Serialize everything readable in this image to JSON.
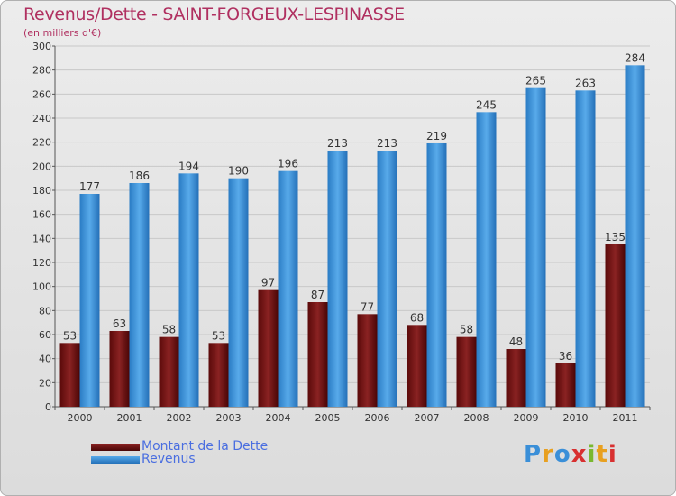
{
  "title": "Revenus/Dette - SAINT-FORGEUX-LESPINASSE",
  "subtitle": "(en milliers d'€)",
  "logo": "Proxiti",
  "colors": {
    "dette_fill": "#7a1a1a",
    "revenus_fill": "#3c96dc",
    "title": "#b03060",
    "legend_text": "#4a6ee0",
    "grid": "#c8c8c8"
  },
  "legend": [
    {
      "label": "Montant de la Dette",
      "color": "#7a1a1a"
    },
    {
      "label": "Revenus",
      "color": "#3c96dc"
    }
  ],
  "chart_data": {
    "type": "bar",
    "title": "Revenus/Dette - SAINT-FORGEUX-LESPINASSE",
    "ylabel": "(en milliers d'€)",
    "categories": [
      "2000",
      "2001",
      "2002",
      "2003",
      "2004",
      "2005",
      "2006",
      "2007",
      "2008",
      "2009",
      "2010",
      "2011"
    ],
    "series": [
      {
        "name": "Montant de la Dette",
        "values": [
          53,
          63,
          58,
          53,
          97,
          87,
          77,
          68,
          58,
          48,
          36,
          135
        ]
      },
      {
        "name": "Revenus",
        "values": [
          177,
          186,
          194,
          190,
          196,
          213,
          213,
          219,
          245,
          265,
          263,
          284
        ]
      }
    ],
    "ylim": [
      0,
      300
    ],
    "yticks": [
      0,
      20,
      40,
      60,
      80,
      100,
      120,
      140,
      160,
      180,
      200,
      220,
      240,
      260,
      280,
      300
    ],
    "grid": true,
    "legend_position": "bottom-left"
  }
}
